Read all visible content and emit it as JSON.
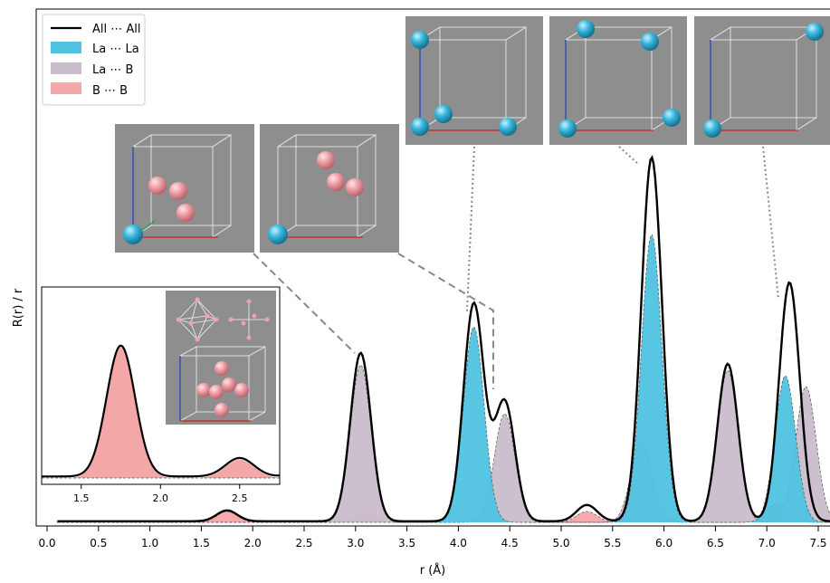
{
  "chart_data": {
    "type": "area",
    "xlabel": "r (Å)",
    "ylabel": "R(r) / r",
    "xlim": [
      0.0,
      7.7
    ],
    "x_ticks": [
      "0.0",
      "0.5",
      "1.0",
      "1.5",
      "2.0",
      "2.5",
      "3.0",
      "3.5",
      "4.0",
      "4.5",
      "5.0",
      "5.5",
      "6.0",
      "6.5",
      "7.0",
      "7.5"
    ],
    "y_ticks_shown": false,
    "legend_position": "top-left",
    "series": [
      {
        "name": "All ⋯ All",
        "style": "line",
        "color": "#000000",
        "peaks": [
          {
            "r": 1.75,
            "h": 0.02
          },
          {
            "r": 3.05,
            "h": 0.31
          },
          {
            "r": 4.15,
            "h": 0.4
          },
          {
            "r": 4.45,
            "h": 0.22
          },
          {
            "r": 5.25,
            "h": 0.03
          },
          {
            "r": 5.88,
            "h": 0.67
          },
          {
            "r": 6.62,
            "h": 0.29
          },
          {
            "r": 7.22,
            "h": 0.44
          }
        ]
      },
      {
        "name": "La ⋯ La",
        "style": "fill",
        "color": "#4fc3e0",
        "peaks": [
          {
            "r": 4.15,
            "h": 0.36
          },
          {
            "r": 5.88,
            "h": 0.53
          },
          {
            "r": 7.18,
            "h": 0.27
          }
        ]
      },
      {
        "name": "La ⋯ B",
        "style": "fill",
        "color": "#c9bdcb",
        "peaks": [
          {
            "r": 3.05,
            "h": 0.29
          },
          {
            "r": 4.45,
            "h": 0.2
          },
          {
            "r": 5.78,
            "h": 0.15
          },
          {
            "r": 6.62,
            "h": 0.28
          },
          {
            "r": 7.38,
            "h": 0.25
          }
        ]
      },
      {
        "name": "B ⋯ B",
        "style": "fill",
        "color": "#f4a7a7",
        "peaks": [
          {
            "r": 1.75,
            "h": 0.02
          },
          {
            "r": 3.1,
            "h": 0.015
          },
          {
            "r": 4.3,
            "h": 0.02
          },
          {
            "r": 5.25,
            "h": 0.02
          },
          {
            "r": 5.9,
            "h": 0.04
          },
          {
            "r": 7.1,
            "h": 0.035
          }
        ]
      }
    ],
    "inset": {
      "position": "bottom-left",
      "xlim": [
        1.25,
        2.75
      ],
      "x_ticks": [
        "1.5",
        "2.0",
        "2.5"
      ],
      "series": [
        {
          "name": "B ⋯ B",
          "peaks": [
            {
              "r": 1.75,
              "h": 0.85
            },
            {
              "r": 2.5,
              "h": 0.12
            }
          ]
        },
        {
          "name": "La ⋯ B",
          "peaks": [
            {
              "r": 3.05,
              "h": 0.95
            }
          ]
        }
      ]
    }
  },
  "colors": {
    "la_atom": "#3ab8df",
    "b_atom": "#f0a2a8",
    "panel_bg": "#8e8e8e"
  },
  "structure_panels": [
    "B-B configuration",
    "B-B configuration",
    "La-La configuration",
    "La-La configuration",
    "La-La configuration",
    "B6 octahedron"
  ]
}
